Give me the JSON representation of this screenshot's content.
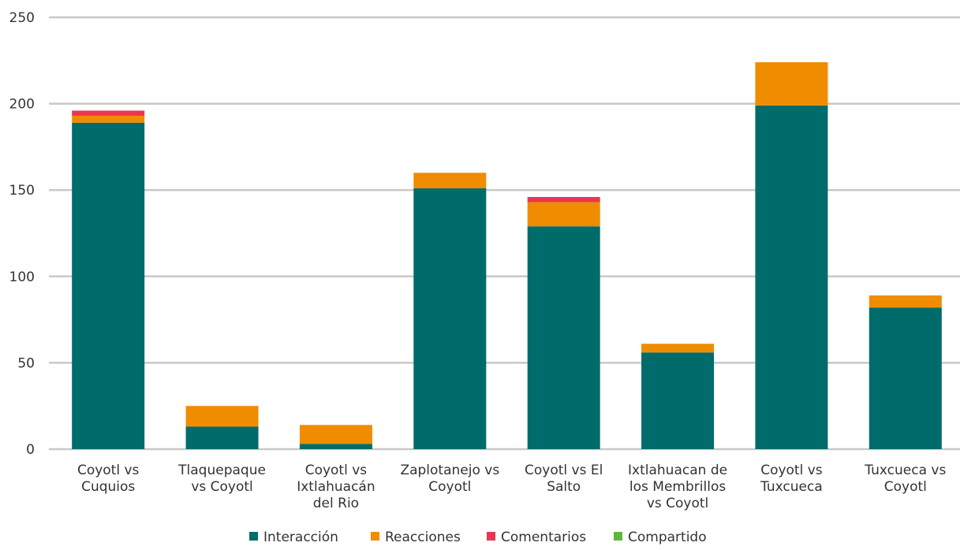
{
  "chart_data": {
    "type": "bar",
    "stacked": true,
    "categories": [
      "Coyotl vs Cuquios",
      "Tlaquepaque vs Coyotl",
      "Coyotl vs Ixtlahuacán del Rio",
      "Zaplotanejo vs Coyotl",
      "Coyotl vs El Salto",
      "Ixtlahuacan de los Membrillos vs Coyotl",
      "Coyotl vs Tuxcueca",
      "Tuxcueca vs Coyotl"
    ],
    "category_lines": [
      [
        "Coyotl vs",
        "Cuquios"
      ],
      [
        "Tlaquepaque",
        "vs Coyotl"
      ],
      [
        "Coyotl vs",
        "Ixtlahuacán",
        "del Rio"
      ],
      [
        "Zaplotanejo vs",
        "Coyotl"
      ],
      [
        "Coyotl vs El",
        "Salto"
      ],
      [
        "Ixtlahuacan de",
        "los Membrillos",
        "vs Coyotl"
      ],
      [
        "Coyotl vs",
        "Tuxcueca"
      ],
      [
        "Tuxcueca vs",
        "Coyotl"
      ]
    ],
    "series": [
      {
        "name": "Interacción",
        "color": "#006b6b",
        "values": [
          189,
          13,
          3,
          151,
          129,
          56,
          199,
          82
        ]
      },
      {
        "name": "Reacciones",
        "color": "#f08c00",
        "values": [
          4,
          12,
          11,
          9,
          14,
          5,
          25,
          7
        ]
      },
      {
        "name": "Comentarios",
        "color": "#e8384f",
        "values": [
          3,
          0,
          0,
          0,
          3,
          0,
          0,
          0
        ]
      },
      {
        "name": "Compartido",
        "color": "#5cb83c",
        "values": [
          0,
          0,
          0,
          0,
          0,
          0,
          0,
          0
        ]
      }
    ],
    "ylim": [
      0,
      250
    ],
    "yticks": [
      0,
      50,
      100,
      150,
      200,
      250
    ],
    "grid": true,
    "legend": "bottom",
    "title": "",
    "xlabel": "",
    "ylabel": ""
  }
}
